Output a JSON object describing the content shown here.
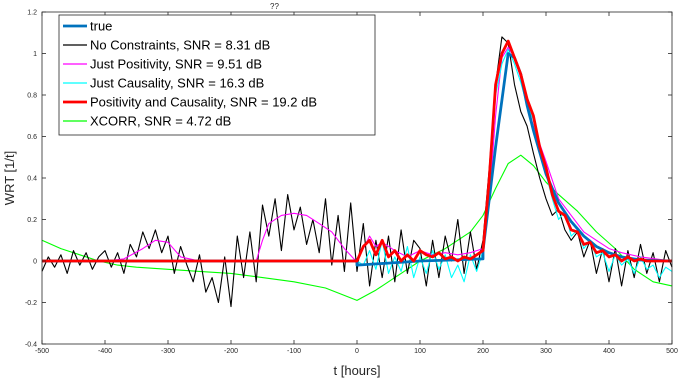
{
  "chart_data": {
    "type": "line",
    "title_fragment": "??",
    "xlabel": "t [hours]",
    "ylabel": "WRT [1/t]",
    "xlim": [
      -500,
      500
    ],
    "ylim": [
      -0.4,
      1.2
    ],
    "x_ticks": [
      -500,
      -400,
      -300,
      -200,
      -100,
      0,
      100,
      200,
      300,
      400,
      500
    ],
    "y_ticks": [
      -0.4,
      -0.2,
      0,
      0.2,
      0.4,
      0.6,
      0.8,
      1,
      1.2
    ],
    "grid": false,
    "legend_position": "top-left",
    "series": [
      {
        "name": "true",
        "color": "#0072bd",
        "width": "thick",
        "x": [
          -500,
          0,
          0.01,
          50,
          100,
          150,
          199.99,
          200,
          220,
          240,
          250,
          260,
          270,
          280,
          300,
          320,
          340,
          360,
          380,
          400,
          420,
          450,
          500
        ],
        "y": [
          0,
          0,
          -0.02,
          -0.01,
          0,
          0.005,
          0.01,
          0.05,
          0.55,
          1.0,
          0.98,
          0.9,
          0.75,
          0.63,
          0.42,
          0.28,
          0.19,
          0.12,
          0.07,
          0.04,
          0.02,
          0.005,
          0
        ]
      },
      {
        "name": "No Constraints, SNR = 8.31 dB",
        "color": "#000000",
        "width": "thin",
        "x": [
          -500,
          -490,
          -480,
          -470,
          -460,
          -450,
          -440,
          -430,
          -420,
          -410,
          -400,
          -390,
          -380,
          -370,
          -360,
          -350,
          -340,
          -330,
          -320,
          -310,
          -300,
          -290,
          -280,
          -270,
          -260,
          -250,
          -240,
          -230,
          -220,
          -210,
          -200,
          -190,
          -180,
          -170,
          -160,
          -150,
          -140,
          -130,
          -120,
          -110,
          -100,
          -90,
          -80,
          -70,
          -60,
          -50,
          -40,
          -30,
          -20,
          -10,
          0,
          10,
          20,
          30,
          40,
          50,
          60,
          70,
          80,
          90,
          100,
          110,
          120,
          130,
          140,
          150,
          160,
          170,
          180,
          190,
          200,
          210,
          220,
          230,
          240,
          250,
          260,
          270,
          280,
          290,
          300,
          310,
          320,
          330,
          340,
          350,
          360,
          370,
          380,
          390,
          400,
          410,
          420,
          430,
          440,
          450,
          460,
          470,
          480,
          490,
          500
        ],
        "y": [
          -0.05,
          0.02,
          -0.03,
          0.03,
          -0.06,
          0.05,
          -0.02,
          0.04,
          -0.04,
          0.02,
          0.05,
          -0.03,
          0.04,
          -0.06,
          0.08,
          0.02,
          0.14,
          0.06,
          0.15,
          0.04,
          0.12,
          -0.06,
          0.07,
          -0.02,
          -0.1,
          0.03,
          -0.15,
          -0.08,
          -0.2,
          0.02,
          -0.22,
          0.12,
          -0.08,
          0.14,
          -0.1,
          0.27,
          0.12,
          0.3,
          0.05,
          0.32,
          0.15,
          0.26,
          0.08,
          0.2,
          0.04,
          0.3,
          -0.02,
          0.22,
          -0.05,
          0.28,
          -0.05,
          0.18,
          -0.12,
          0.1,
          -0.08,
          0.12,
          -0.1,
          0.15,
          -0.06,
          0.1,
          0.06,
          -0.12,
          0.1,
          -0.08,
          0.12,
          0.0,
          0.2,
          -0.06,
          0.14,
          -0.04,
          0.1,
          0.45,
          0.85,
          1.08,
          1.05,
          0.85,
          0.72,
          0.65,
          0.52,
          0.4,
          0.3,
          0.22,
          0.25,
          0.15,
          0.1,
          0.14,
          0.02,
          0.1,
          -0.06,
          0.06,
          -0.1,
          0.06,
          -0.12,
          0.05,
          -0.08,
          0.08,
          -0.06,
          0.04,
          -0.1,
          0.05,
          -0.03
        ]
      },
      {
        "name": "Just Positivity,  SNR = 9.51 dB",
        "color": "#ff00ff",
        "width": "thin",
        "x": [
          -500,
          -400,
          -370,
          -340,
          -320,
          -300,
          -280,
          -250,
          -200,
          -160,
          -150,
          -140,
          -120,
          -100,
          -80,
          -60,
          -40,
          -20,
          -5,
          0,
          10,
          20,
          30,
          40,
          60,
          80,
          100,
          120,
          140,
          160,
          180,
          200,
          210,
          220,
          230,
          240,
          250,
          260,
          270,
          280,
          300,
          320,
          340,
          360,
          380,
          400,
          420,
          450,
          500
        ],
        "y": [
          0,
          0,
          0.01,
          0.06,
          0.1,
          0.09,
          0.02,
          0,
          0,
          0,
          0.1,
          0.18,
          0.22,
          0.23,
          0.22,
          0.18,
          0.14,
          0.06,
          0.01,
          0,
          0.06,
          0.12,
          0.07,
          0.09,
          0.05,
          0.02,
          0.05,
          0.03,
          0.04,
          0.03,
          0.04,
          0.06,
          0.3,
          0.7,
          0.98,
          1.03,
          0.98,
          0.88,
          0.76,
          0.65,
          0.48,
          0.3,
          0.22,
          0.14,
          0.1,
          0.06,
          0.04,
          0.02,
          0
        ]
      },
      {
        "name": "Just Causality, SNR = 16.3 dB",
        "color": "#00ffff",
        "width": "thin",
        "x": [
          -500,
          0,
          10,
          20,
          30,
          40,
          50,
          60,
          70,
          80,
          90,
          100,
          110,
          120,
          130,
          140,
          150,
          160,
          170,
          180,
          190,
          200,
          210,
          220,
          230,
          240,
          250,
          260,
          270,
          280,
          290,
          300,
          310,
          320,
          330,
          340,
          350,
          360,
          370,
          380,
          390,
          400,
          410,
          420,
          430,
          440,
          450,
          460,
          470,
          480,
          490,
          500
        ],
        "y": [
          0,
          0,
          -0.02,
          0.05,
          -0.04,
          0.1,
          -0.06,
          0.02,
          -0.05,
          0.07,
          -0.08,
          0.02,
          -0.06,
          0.05,
          -0.04,
          0.03,
          -0.08,
          -0.02,
          -0.1,
          0.03,
          -0.05,
          0.05,
          0.35,
          0.8,
          0.95,
          1.02,
          0.95,
          0.86,
          0.75,
          0.68,
          0.52,
          0.42,
          0.3,
          0.2,
          0.24,
          0.12,
          0.15,
          0.06,
          0.1,
          0.02,
          0.04,
          -0.05,
          0.03,
          -0.02,
          0.01,
          -0.06,
          0.02,
          -0.04,
          -0.02,
          -0.08,
          -0.03,
          -0.05
        ]
      },
      {
        "name": "Positivity and Causality, SNR = 19.2 dB",
        "color": "#ff0000",
        "width": "thick",
        "x": [
          -500,
          0,
          10,
          20,
          30,
          40,
          50,
          60,
          70,
          80,
          90,
          100,
          110,
          120,
          130,
          140,
          150,
          160,
          170,
          180,
          190,
          200,
          210,
          220,
          230,
          240,
          250,
          260,
          270,
          280,
          290,
          300,
          310,
          320,
          330,
          340,
          350,
          360,
          370,
          380,
          390,
          400,
          410,
          420,
          430,
          440,
          450,
          460,
          470,
          480,
          490,
          500
        ],
        "y": [
          0,
          0,
          0.07,
          0.1,
          0.03,
          0.1,
          0.02,
          0.05,
          0.0,
          0.03,
          0.0,
          0.05,
          0.03,
          0.02,
          0.04,
          0.01,
          0.02,
          0.0,
          0.02,
          0.01,
          0.03,
          0.05,
          0.4,
          0.85,
          1.0,
          1.06,
          0.98,
          0.9,
          0.78,
          0.7,
          0.55,
          0.45,
          0.32,
          0.24,
          0.22,
          0.15,
          0.14,
          0.08,
          0.09,
          0.04,
          0.05,
          0.02,
          0.03,
          0.0,
          0.02,
          0.0,
          0.01,
          0.0,
          0.0,
          0.0,
          0.0,
          0.0
        ]
      },
      {
        "name": "XCORR, SNR = 4.72 dB",
        "color": "#00ff00",
        "width": "thin",
        "x": [
          -500,
          -470,
          -440,
          -410,
          -380,
          -350,
          -300,
          -250,
          -200,
          -150,
          -100,
          -50,
          0,
          30,
          60,
          100,
          140,
          180,
          200,
          220,
          240,
          260,
          280,
          300,
          320,
          350,
          380,
          410,
          440,
          470,
          500
        ],
        "y": [
          0.1,
          0.06,
          0.03,
          0.0,
          -0.02,
          -0.03,
          -0.04,
          -0.05,
          -0.06,
          -0.08,
          -0.1,
          -0.13,
          -0.19,
          -0.14,
          -0.08,
          0.0,
          0.06,
          0.14,
          0.22,
          0.35,
          0.47,
          0.51,
          0.46,
          0.38,
          0.32,
          0.24,
          0.14,
          0.06,
          -0.04,
          -0.1,
          -0.12
        ]
      }
    ]
  }
}
